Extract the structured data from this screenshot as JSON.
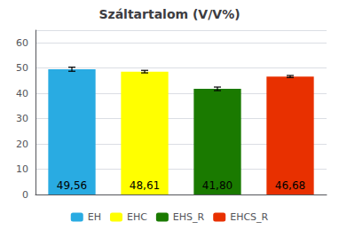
{
  "chart_data": {
    "type": "bar",
    "title": "Száltartalom (V/V%)",
    "categories": [
      "EH",
      "EHC",
      "EHS_R",
      "EHCS_R"
    ],
    "values": [
      49.56,
      48.61,
      41.8,
      46.68
    ],
    "errors": [
      0.8,
      0.5,
      0.7,
      0.4
    ],
    "value_labels": [
      "49,56",
      "48,61",
      "41,80",
      "46,68"
    ],
    "colors": [
      "#29ABE2",
      "#FFFF00",
      "#1A7A00",
      "#E83000"
    ],
    "ylim": [
      0,
      65
    ],
    "yticks": [
      0,
      10,
      20,
      30,
      40,
      50,
      60
    ],
    "grid": true,
    "legend": "bottom",
    "data_labels": true,
    "tick_labels": "y"
  }
}
